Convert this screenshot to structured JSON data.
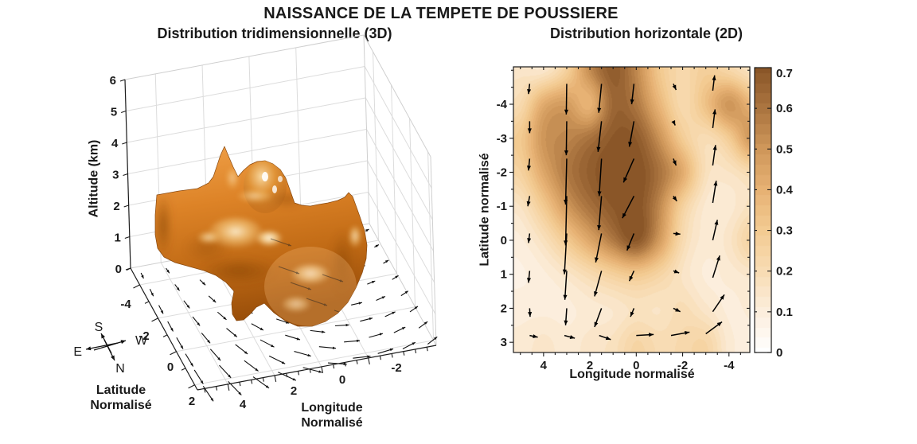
{
  "figure": {
    "title": "NAISSANCE DE LA TEMPETE DE POUSSIERE",
    "background": "#ffffff",
    "text_color": "#1a1a1a"
  },
  "plot3d": {
    "title": "Distribution tridimensionnelle (3D)",
    "zlabel": "Altitude (km)",
    "xlabel_line1": "Longitude",
    "xlabel_line2": "Normalisé",
    "ylabel_line1": "Latitude",
    "ylabel_line2": "Normalisé",
    "compass": {
      "up": "S",
      "right": "W",
      "left": "E",
      "down": "N"
    }
  },
  "plot2d": {
    "title": "Distribution horizontale (2D)",
    "xlabel": "Longitude normalisé",
    "ylabel": "Latitude normalisé"
  },
  "chart_data": [
    {
      "type": "isosurface-3d",
      "title": "Distribution tridimensionnelle (3D)",
      "xlabel": "Longitude Normalisé",
      "ylabel": "Latitude Normalisé",
      "zlabel": "Altitude (km)",
      "xlim": [
        5.3,
        -4.9
      ],
      "ylim": [
        -5,
        2.3
      ],
      "zlim": [
        0,
        6
      ],
      "x_ticks": [
        4,
        2,
        0,
        -2
      ],
      "y_ticks": [
        -4,
        -2,
        0,
        2
      ],
      "z_ticks": [
        0,
        1,
        2,
        3,
        4,
        5,
        6
      ],
      "surface_color": "#d4761c",
      "surface_highlight": "#fff3d8",
      "surface_shadow": "#8a4505",
      "description": "opaque copper dust-cloud isosurface with semi-transparent outer shell, two peaks near 4 km and ground-level wind quiver field curling clockwise",
      "base_quiver": {
        "rows": 8,
        "cols": 10,
        "angle_start_deg": 64,
        "angle_turn_deg": -100,
        "len_min": 7,
        "len_max": 23
      }
    },
    {
      "type": "heatmap",
      "title": "Distribution horizontale (2D)",
      "xlabel": "Longitude normalisé",
      "ylabel": "Latitude normalisé",
      "xlim": [
        5.3,
        -4.9
      ],
      "ylim": [
        -5.1,
        3.3
      ],
      "x_ticks": [
        4,
        2,
        0,
        -2,
        -4
      ],
      "y_ticks": [
        -4,
        -3,
        -2,
        -1,
        0,
        1,
        2,
        3
      ],
      "grid": {
        "longs": [
          5,
          4,
          3,
          2,
          1,
          0,
          -1,
          -2,
          -3,
          -4,
          -5
        ],
        "lats": [
          -5,
          -4,
          -3,
          -2,
          -1,
          0,
          1,
          2,
          3
        ],
        "values": [
          [
            0.15,
            0.12,
            0.25,
            0.55,
            0.7,
            0.55,
            0.3,
            0.22,
            0.28,
            0.22,
            0.15
          ],
          [
            0.2,
            0.45,
            0.5,
            0.35,
            0.66,
            0.6,
            0.38,
            0.2,
            0.35,
            0.55,
            0.38
          ],
          [
            0.3,
            0.52,
            0.55,
            0.62,
            0.7,
            0.7,
            0.52,
            0.28,
            0.18,
            0.28,
            0.55
          ],
          [
            0.25,
            0.45,
            0.6,
            0.68,
            0.73,
            0.73,
            0.62,
            0.45,
            0.17,
            0.15,
            0.2
          ],
          [
            0.15,
            0.3,
            0.5,
            0.62,
            0.7,
            0.73,
            0.55,
            0.25,
            0.12,
            0.12,
            0.17
          ],
          [
            0.1,
            0.17,
            0.3,
            0.45,
            0.6,
            0.74,
            0.5,
            0.2,
            0.12,
            0.15,
            0.28
          ],
          [
            0.08,
            0.1,
            0.14,
            0.2,
            0.26,
            0.3,
            0.24,
            0.15,
            0.1,
            0.12,
            0.14
          ],
          [
            0.1,
            0.1,
            0.1,
            0.12,
            0.13,
            0.16,
            0.15,
            0.2,
            0.14,
            0.1,
            0.12
          ],
          [
            0.12,
            0.15,
            0.12,
            0.15,
            0.17,
            0.25,
            0.2,
            0.22,
            0.25,
            0.12,
            0.1
          ]
        ]
      },
      "quiver": [
        [
          4.6,
          -4.6,
          0.05,
          0.3
        ],
        [
          4.6,
          -3.5,
          0.0,
          0.35
        ],
        [
          4.6,
          -2.4,
          0.05,
          0.35
        ],
        [
          4.6,
          -1.3,
          0.08,
          0.3
        ],
        [
          4.6,
          -0.2,
          0.05,
          0.28
        ],
        [
          4.6,
          0.9,
          0.05,
          0.35
        ],
        [
          4.6,
          2.0,
          -0.02,
          0.25
        ],
        [
          3.0,
          -4.6,
          0.02,
          0.9
        ],
        [
          3.0,
          -3.5,
          0.02,
          1.0
        ],
        [
          3.0,
          -2.4,
          0.05,
          1.35
        ],
        [
          3.0,
          -1.3,
          0.05,
          1.45
        ],
        [
          3.0,
          -0.2,
          0.1,
          1.2
        ],
        [
          3.0,
          0.9,
          0.08,
          0.85
        ],
        [
          3.0,
          2.0,
          0.05,
          0.5
        ],
        [
          1.5,
          -4.6,
          0.12,
          0.85
        ],
        [
          1.5,
          -3.5,
          0.15,
          0.9
        ],
        [
          1.5,
          -2.4,
          0.1,
          1.1
        ],
        [
          1.5,
          -1.3,
          0.12,
          1.0
        ],
        [
          1.5,
          -0.2,
          0.25,
          0.85
        ],
        [
          1.5,
          0.9,
          0.3,
          0.75
        ],
        [
          1.5,
          2.0,
          0.3,
          0.55
        ],
        [
          0.1,
          -4.6,
          0.1,
          0.6
        ],
        [
          0.1,
          -3.5,
          0.2,
          0.75
        ],
        [
          0.1,
          -2.4,
          0.45,
          0.7
        ],
        [
          0.1,
          -1.3,
          0.5,
          0.65
        ],
        [
          0.1,
          -0.2,
          0.3,
          0.5
        ],
        [
          0.1,
          0.9,
          0.2,
          0.3
        ],
        [
          0.1,
          2.0,
          0.15,
          0.25
        ],
        [
          -1.6,
          -4.6,
          -0.12,
          0.18
        ],
        [
          -1.6,
          -3.5,
          -0.08,
          0.12
        ],
        [
          -1.6,
          -2.4,
          -0.12,
          0.2
        ],
        [
          -1.6,
          -1.3,
          -0.15,
          0.15
        ],
        [
          -1.6,
          -0.2,
          -0.3,
          0.02
        ],
        [
          -1.6,
          0.9,
          -0.25,
          0.06
        ],
        [
          -1.6,
          2.0,
          -0.3,
          0.1
        ],
        [
          -3.3,
          -4.4,
          -0.08,
          -0.45
        ],
        [
          -3.3,
          -3.3,
          -0.1,
          -0.55
        ],
        [
          -3.3,
          -2.2,
          -0.12,
          -0.6
        ],
        [
          -3.3,
          -1.1,
          -0.15,
          -0.65
        ],
        [
          -3.3,
          0.0,
          -0.2,
          -0.6
        ],
        [
          -3.3,
          1.1,
          -0.3,
          -0.65
        ],
        [
          -3.3,
          2.1,
          -0.5,
          -0.5
        ],
        [
          4.6,
          2.8,
          -0.35,
          0.05
        ],
        [
          3.1,
          2.8,
          -0.45,
          0.08
        ],
        [
          1.6,
          2.8,
          -0.5,
          0.12
        ],
        [
          0.0,
          2.8,
          -0.75,
          -0.03
        ],
        [
          -1.5,
          2.8,
          -0.8,
          -0.1
        ],
        [
          -3.0,
          2.75,
          -0.7,
          -0.35
        ]
      ],
      "colormap_stops": [
        [
          0.0,
          "#ffffff"
        ],
        [
          0.1,
          "#fceedd"
        ],
        [
          0.2,
          "#f8dcb4"
        ],
        [
          0.3,
          "#f3cb92"
        ],
        [
          0.4,
          "#e7b274"
        ],
        [
          0.5,
          "#cf975a"
        ],
        [
          0.6,
          "#ab7540"
        ],
        [
          0.7,
          "#8a5628"
        ]
      ],
      "level_step": 0.025,
      "colorbar": {
        "min": 0,
        "max": 0.7,
        "ticks": [
          0,
          0.1,
          0.2,
          0.3,
          0.4,
          0.5,
          0.6,
          0.7
        ]
      }
    }
  ]
}
